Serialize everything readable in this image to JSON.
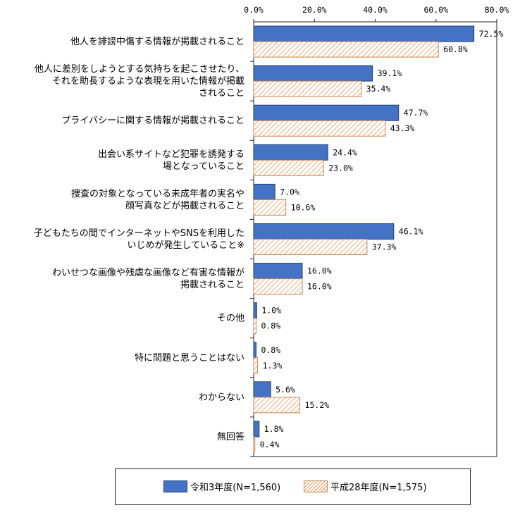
{
  "chart_data": {
    "type": "bar",
    "orientation": "horizontal",
    "categories": [
      [
        "他人を誹謗中傷する情報が掲載されること"
      ],
      [
        "他人に差別をしようとする気持ちを起こさせたり、",
        "それを助長するような表現を用いた情報が掲載",
        "されること"
      ],
      [
        "プライバシーに関する情報が掲載されること"
      ],
      [
        "出会い系サイトなど犯罪を誘発する",
        "場となっていること"
      ],
      [
        "捜査の対象となっている未成年者の実名や",
        "顔写真などが掲載されること"
      ],
      [
        "子どもたちの間でインターネットやSNSを利用した",
        "いじめが発生していること※"
      ],
      [
        "わいせつな画像や残虐な画像など有害な情報が",
        "掲載されること"
      ],
      [
        "その他"
      ],
      [
        "特に問題と思うことはない"
      ],
      [
        "わからない"
      ],
      [
        "無回答"
      ]
    ],
    "series": [
      {
        "name": "令和3年度(N=1,560)",
        "values": [
          72.5,
          39.1,
          47.7,
          24.4,
          7.0,
          46.1,
          16.0,
          1.0,
          0.8,
          5.6,
          1.8
        ],
        "labels": [
          "72.5%",
          "39.1%",
          "47.7%",
          "24.4%",
          "7.0%",
          "46.1%",
          "16.0%",
          "1.0%",
          "0.8%",
          "5.6%",
          "1.8%"
        ]
      },
      {
        "name": "平成28年度(N=1,575)",
        "values": [
          60.8,
          35.4,
          43.3,
          23.0,
          10.6,
          37.3,
          16.0,
          0.8,
          1.3,
          15.2,
          0.4
        ],
        "labels": [
          "60.8%",
          "35.4%",
          "43.3%",
          "23.0%",
          "10.6%",
          "37.3%",
          "16.0%",
          "0.8%",
          "1.3%",
          "15.2%",
          "0.4%"
        ]
      }
    ],
    "xlim": [
      0,
      80
    ],
    "ticks": [
      "0.0%",
      "20.0%",
      "40.0%",
      "60.0%",
      "80.0%"
    ],
    "tick_values": [
      0,
      20,
      40,
      60,
      80
    ],
    "legend_position": "bottom",
    "colors": {
      "series1": "#4472c4",
      "series1_border": "#1f3d7a",
      "series2_hatch": "#f4b183",
      "series2_border": "#c9864f"
    }
  },
  "legend": {
    "series1": "令和3年度(N=1,560)",
    "series2": "平成28年度(N=1,575)"
  }
}
